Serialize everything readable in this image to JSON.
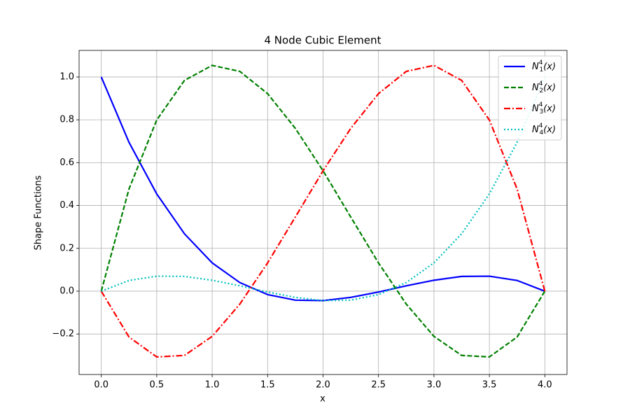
{
  "chart_data": {
    "type": "line",
    "title": "4 Node Cubic Element",
    "x_label": "x",
    "y_label": "Shape Functions",
    "x": [
      0,
      0.25,
      0.5,
      0.75,
      1,
      1.25,
      1.5,
      1.75,
      2,
      2.25,
      2.5,
      2.75,
      3,
      3.25,
      3.5,
      3.75,
      4
    ],
    "series": [
      {
        "name": "N_1^4(x)",
        "color": "#0000ff",
        "linestyle": "solid",
        "values": [
          1,
          0.695,
          0.454,
          0.268,
          0.132,
          0.04,
          -0.016,
          -0.042,
          -0.044,
          -0.029,
          -0.004,
          0.025,
          0.051,
          0.069,
          0.07,
          0.05,
          0
        ]
      },
      {
        "name": "N_2^4(x)",
        "color": "#008000",
        "linestyle": "dashed",
        "values": [
          0,
          0.477,
          0.799,
          0.984,
          1.054,
          1.026,
          0.922,
          0.76,
          0.562,
          0.346,
          0.132,
          -0.06,
          -0.211,
          -0.3,
          -0.307,
          -0.214,
          0
        ]
      },
      {
        "name": "N_3^4(x)",
        "color": "#ff0000",
        "linestyle": "dashdot",
        "values": [
          0,
          -0.214,
          -0.307,
          -0.3,
          -0.211,
          -0.06,
          0.132,
          0.346,
          0.562,
          0.76,
          0.922,
          1.026,
          1.054,
          0.984,
          0.799,
          0.477,
          0
        ]
      },
      {
        "name": "N_4^4(x)",
        "color": "#00bfbf",
        "linestyle": "dotted",
        "values": [
          0,
          0.05,
          0.07,
          0.069,
          0.051,
          0.025,
          -0.004,
          -0.029,
          -0.044,
          -0.042,
          -0.016,
          0.04,
          0.132,
          0.268,
          0.454,
          0.695,
          1
        ]
      }
    ],
    "xlim": [
      -0.2,
      4.2
    ],
    "ylim": [
      -0.389,
      1.124
    ],
    "xticks": [
      {
        "value": 0,
        "label": "0.0"
      },
      0.5,
      {
        "value": 1,
        "label": "1.0"
      },
      1.5,
      {
        "value": 2,
        "label": "2.0"
      },
      2.5,
      {
        "value": 3,
        "label": "3.0"
      },
      3.5,
      {
        "value": 4,
        "label": "4.0"
      }
    ],
    "yticks": [
      {
        "value": -0.2,
        "label": "−0.2"
      },
      {
        "value": 0,
        "label": "0.0"
      },
      0.2,
      0.4,
      0.6,
      0.8,
      {
        "value": 1,
        "label": "1.0"
      }
    ],
    "grid": true,
    "legend": "upper right"
  }
}
